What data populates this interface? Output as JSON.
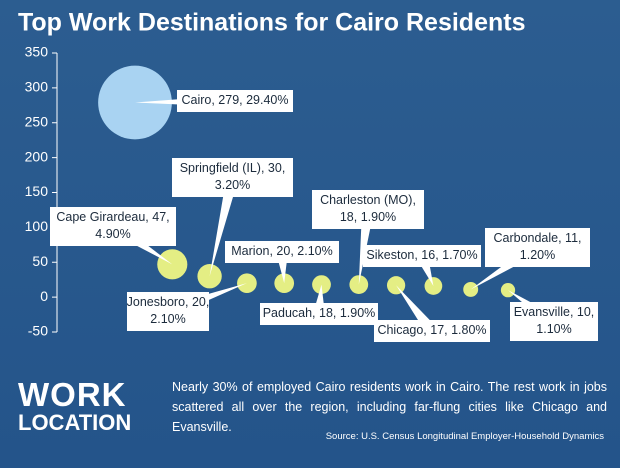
{
  "chart_data": {
    "type": "bubble",
    "title": "Top Work Destinations for Cairo Residents",
    "ylim": [
      -50,
      350
    ],
    "yticks": [
      -50,
      0,
      50,
      100,
      150,
      200,
      250,
      300,
      350
    ],
    "values": [
      279,
      47,
      30,
      20,
      20,
      18,
      18,
      17,
      16,
      11,
      10
    ],
    "sizes": [
      29.4,
      4.9,
      3.2,
      2.1,
      2.1,
      1.9,
      1.9,
      1.8,
      1.7,
      1.2,
      1.1
    ],
    "value_labels": [
      [
        "Cairo, 279, 29.40%"
      ],
      [
        "Cape Girardeau, 47,",
        "4.90%"
      ],
      [
        "Springfield (IL), 30,",
        "3.20%"
      ],
      [
        "Jonesboro, 20,",
        "2.10%"
      ],
      [
        "Marion, 20, 2.10%"
      ],
      [
        "Paducah, 18, 1.90%"
      ],
      [
        "Charleston (MO),",
        "18, 1.90%"
      ],
      [
        "Chicago, 17, 1.80%"
      ],
      [
        "Sikeston, 16, 1.70%"
      ],
      [
        "Carbondale, 11,",
        "1.20%"
      ],
      [
        "Evansville, 10,",
        "1.10%"
      ]
    ],
    "colors": [
      "#a9d3f2",
      "#e4ee84",
      "#e4ee84",
      "#e4ee84",
      "#e4ee84",
      "#e4ee84",
      "#e4ee84",
      "#e4ee84",
      "#e4ee84",
      "#e4ee84",
      "#e4ee84"
    ]
  },
  "footer": {
    "heading": [
      "WORK",
      "LOCATION"
    ],
    "text": "Nearly 30% of employed Cairo residents work in Cairo. The rest work in jobs scattered all over the region, including far-flung cities like Chicago and Evansville.",
    "source": "Source: U.S. Census Longitudinal Employer-Household Dynamics"
  }
}
